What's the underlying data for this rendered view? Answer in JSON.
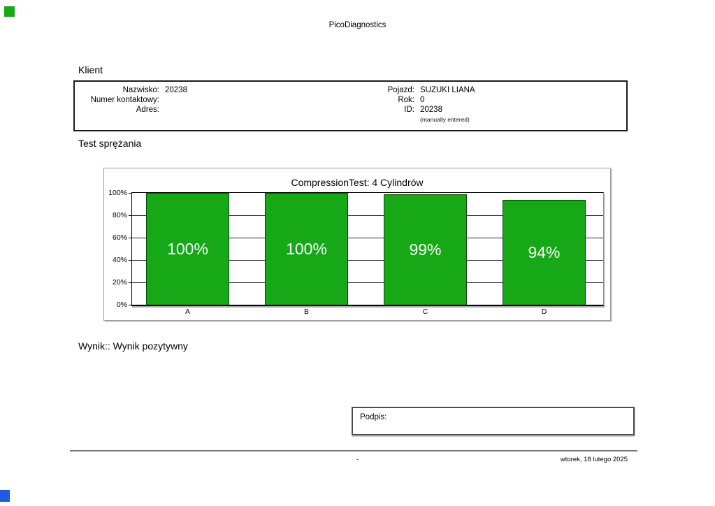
{
  "header": {
    "title": "PicoDiagnostics"
  },
  "client": {
    "section_label": "Klient",
    "left_fields": [
      {
        "label": "Nazwisko:",
        "value": "20238"
      },
      {
        "label": "Numer kontaktowy:",
        "value": ""
      },
      {
        "label": "Adres:",
        "value": ""
      }
    ],
    "right_fields": [
      {
        "label": "Pojazd:",
        "value": "SUZUKI LIANA"
      },
      {
        "label": "Rok:",
        "value": "0"
      },
      {
        "label": "ID:",
        "value": "20238"
      }
    ],
    "id_note": "(manually entered)"
  },
  "compression_test": {
    "section_label": "Test sprężania"
  },
  "chart_data": {
    "type": "bar",
    "title": "CompressionTest: 4 Cylindrów",
    "categories": [
      "A",
      "B",
      "C",
      "D"
    ],
    "values": [
      100,
      100,
      99,
      94
    ],
    "value_labels": [
      "100%",
      "100%",
      "99%",
      "94%"
    ],
    "ytick_labels": [
      "100%",
      "80%",
      "60%",
      "40%",
      "20%",
      "0%"
    ],
    "ylim": [
      0,
      100
    ],
    "grid": true,
    "legend": "none",
    "bar_color": "#17A817",
    "bar_label_color": "#FAFAFA",
    "xlabel": "",
    "ylabel": ""
  },
  "result": {
    "text": "Wynik:: Wynik pozytywny"
  },
  "signature": {
    "label": "Podpis:"
  },
  "footer": {
    "page_indicator": "-",
    "date": "wtorek, 18 lutego 2025"
  },
  "markers": {
    "top_left_color": "#17A817",
    "bottom_left_color": "#2359DE"
  }
}
